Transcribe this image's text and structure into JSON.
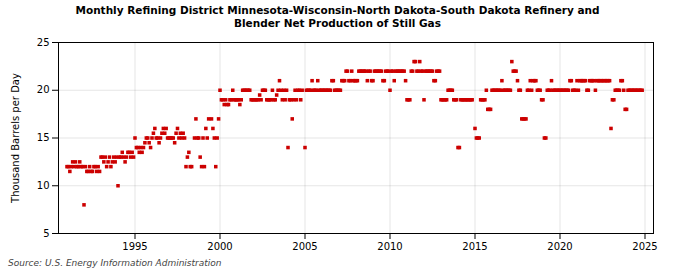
{
  "chart_data": {
    "type": "scatter",
    "title": "Monthly Refining District Minnesota-Wisconsin-North Dakota-South Dakota Refinery and\nBlender Net Production of Still Gas",
    "ylabel": "Thousand Barrels per Day",
    "annotations": [
      "Source: U.S. Energy Information Administration"
    ],
    "color": "#cc0000",
    "marker": "square",
    "grid": true,
    "xlim": [
      1990.5,
      2025.5
    ],
    "ylim": [
      5,
      25
    ],
    "xticks": [
      1995,
      2000,
      2005,
      2010,
      2015,
      2020,
      2025
    ],
    "yticks": [
      5,
      10,
      15,
      20,
      25
    ],
    "x": [
      1991.0,
      1991.083,
      1991.167,
      1991.25,
      1991.333,
      1991.417,
      1991.5,
      1991.583,
      1991.667,
      1991.75,
      1991.833,
      1991.917,
      1992.0,
      1992.083,
      1992.167,
      1992.25,
      1992.333,
      1992.417,
      1992.5,
      1992.583,
      1992.667,
      1992.75,
      1992.833,
      1992.917,
      1993.0,
      1993.083,
      1993.167,
      1993.25,
      1993.333,
      1993.417,
      1993.5,
      1993.583,
      1993.667,
      1993.75,
      1993.833,
      1993.917,
      1994.0,
      1994.083,
      1994.167,
      1994.25,
      1994.333,
      1994.417,
      1994.5,
      1994.583,
      1994.667,
      1994.75,
      1994.833,
      1994.917,
      1995.0,
      1995.083,
      1995.167,
      1995.25,
      1995.333,
      1995.417,
      1995.5,
      1995.583,
      1995.667,
      1995.75,
      1995.833,
      1995.917,
      1996.0,
      1996.083,
      1996.167,
      1996.25,
      1996.333,
      1996.417,
      1996.5,
      1996.583,
      1996.667,
      1996.75,
      1996.833,
      1996.917,
      1997.0,
      1997.083,
      1997.167,
      1997.25,
      1997.333,
      1997.417,
      1997.5,
      1997.583,
      1997.667,
      1997.75,
      1997.833,
      1997.917,
      1998.0,
      1998.083,
      1998.167,
      1998.25,
      1998.333,
      1998.5,
      1998.583,
      1998.667,
      1998.75,
      1998.833,
      1998.917,
      1999.0,
      1999.083,
      1999.167,
      1999.25,
      1999.333,
      1999.5,
      1999.583,
      1999.667,
      1999.75,
      1999.833,
      1999.917,
      2000.0,
      2000.083,
      2000.167,
      2000.25,
      2000.333,
      2000.417,
      2000.5,
      2000.583,
      2000.667,
      2000.75,
      2000.833,
      2000.917,
      2001.0,
      2001.083,
      2001.167,
      2001.25,
      2001.333,
      2001.417,
      2001.5,
      2001.583,
      2001.667,
      2001.75,
      2001.833,
      2001.917,
      2002.0,
      2002.083,
      2002.167,
      2002.25,
      2002.333,
      2002.417,
      2002.5,
      2002.583,
      2002.667,
      2002.75,
      2002.833,
      2002.917,
      2003.0,
      2003.083,
      2003.167,
      2003.25,
      2003.333,
      2003.417,
      2003.5,
      2003.583,
      2003.667,
      2003.75,
      2003.833,
      2003.917,
      2004.0,
      2004.083,
      2004.167,
      2004.25,
      2004.333,
      2004.417,
      2004.5,
      2004.583,
      2004.667,
      2004.75,
      2004.833,
      2005.0,
      2005.083,
      2005.167,
      2005.25,
      2005.333,
      2005.417,
      2005.5,
      2005.583,
      2005.667,
      2005.75,
      2005.833,
      2005.917,
      2006.0,
      2006.083,
      2006.167,
      2006.25,
      2006.333,
      2006.417,
      2006.5,
      2006.583,
      2006.667,
      2006.75,
      2006.833,
      2006.917,
      2007.0,
      2007.083,
      2007.167,
      2007.25,
      2007.333,
      2007.417,
      2007.5,
      2007.583,
      2007.667,
      2007.75,
      2007.833,
      2007.917,
      2008.0,
      2008.083,
      2008.167,
      2008.25,
      2008.333,
      2008.417,
      2008.5,
      2008.583,
      2008.667,
      2008.75,
      2008.833,
      2008.917,
      2009.0,
      2009.083,
      2009.167,
      2009.25,
      2009.333,
      2009.417,
      2009.5,
      2009.583,
      2009.667,
      2009.75,
      2009.833,
      2009.917,
      2010.0,
      2010.083,
      2010.167,
      2010.25,
      2010.333,
      2010.417,
      2010.5,
      2010.583,
      2010.667,
      2010.75,
      2010.833,
      2010.917,
      2011.0,
      2011.083,
      2011.167,
      2011.25,
      2011.333,
      2011.417,
      2011.5,
      2011.583,
      2011.667,
      2011.75,
      2011.833,
      2011.917,
      2012.0,
      2012.083,
      2012.167,
      2012.25,
      2012.333,
      2012.417,
      2012.5,
      2012.583,
      2012.667,
      2012.75,
      2012.833,
      2012.917,
      2013.0,
      2013.083,
      2013.167,
      2013.25,
      2013.333,
      2013.417,
      2013.5,
      2013.583,
      2013.667,
      2013.75,
      2013.833,
      2013.917,
      2014.0,
      2014.083,
      2014.167,
      2014.25,
      2014.333,
      2014.417,
      2014.5,
      2014.583,
      2014.667,
      2014.75,
      2014.833,
      2015.0,
      2015.083,
      2015.167,
      2015.25,
      2015.333,
      2015.417,
      2015.5,
      2015.583,
      2015.667,
      2015.75,
      2015.833,
      2015.917,
      2016.0,
      2016.083,
      2016.167,
      2016.25,
      2016.333,
      2016.417,
      2016.5,
      2016.583,
      2016.667,
      2016.75,
      2016.833,
      2016.917,
      2017.0,
      2017.083,
      2017.167,
      2017.25,
      2017.333,
      2017.417,
      2017.5,
      2017.583,
      2017.667,
      2017.75,
      2017.833,
      2017.917,
      2018.0,
      2018.083,
      2018.167,
      2018.25,
      2018.333,
      2018.417,
      2018.5,
      2018.583,
      2018.667,
      2018.75,
      2018.833,
      2018.917,
      2019.0,
      2019.083,
      2019.167,
      2019.25,
      2019.333,
      2019.417,
      2019.5,
      2019.583,
      2019.667,
      2019.75,
      2019.833,
      2019.917,
      2020.0,
      2020.083,
      2020.167,
      2020.25,
      2020.333,
      2020.417,
      2020.5,
      2020.583,
      2020.667,
      2020.75,
      2020.833,
      2020.917,
      2021.0,
      2021.083,
      2021.167,
      2021.25,
      2021.333,
      2021.417,
      2021.5,
      2021.583,
      2021.667,
      2021.75,
      2021.833,
      2021.917,
      2022.0,
      2022.083,
      2022.167,
      2022.25,
      2022.333,
      2022.417,
      2022.5,
      2022.583,
      2022.667,
      2022.75,
      2022.833,
      2022.917,
      2023.0,
      2023.083,
      2023.167,
      2023.25,
      2023.333,
      2023.417,
      2023.5,
      2023.583,
      2023.667,
      2023.75,
      2023.833,
      2023.917,
      2024.0,
      2024.083,
      2024.167,
      2024.25,
      2024.333,
      2024.417,
      2024.5,
      2024.583,
      2024.667,
      2024.75,
      2024.833
    ],
    "values": [
      12.0,
      12.0,
      11.5,
      12.0,
      12.5,
      12.0,
      12.5,
      12.0,
      12.0,
      12.5,
      12.0,
      12.0,
      8.0,
      12.0,
      11.5,
      11.5,
      12.0,
      11.5,
      11.5,
      12.0,
      12.0,
      11.5,
      12.0,
      11.5,
      13.0,
      13.0,
      12.5,
      13.0,
      12.0,
      12.5,
      13.0,
      12.0,
      12.5,
      13.0,
      12.5,
      13.0,
      10.0,
      13.0,
      13.0,
      13.5,
      13.0,
      12.5,
      13.0,
      13.5,
      13.5,
      13.0,
      13.5,
      13.0,
      15.0,
      14.0,
      14.0,
      13.5,
      14.0,
      13.5,
      14.0,
      14.5,
      15.0,
      15.0,
      14.5,
      14.0,
      15.0,
      15.5,
      16.0,
      15.0,
      15.0,
      14.5,
      15.0,
      15.5,
      16.0,
      15.5,
      16.0,
      15.0,
      15.0,
      15.0,
      15.0,
      15.0,
      14.5,
      15.5,
      16.0,
      15.0,
      15.5,
      15.0,
      15.5,
      15.0,
      12.0,
      13.0,
      13.5,
      12.0,
      12.0,
      15.0,
      17.0,
      15.0,
      15.0,
      13.0,
      12.0,
      15.0,
      12.0,
      16.0,
      15.0,
      17.0,
      17.0,
      16.0,
      15.0,
      12.0,
      15.0,
      17.0,
      20.0,
      19.0,
      19.0,
      18.5,
      19.0,
      18.5,
      18.5,
      19.0,
      19.0,
      20.0,
      19.0,
      19.0,
      19.0,
      19.0,
      18.5,
      19.0,
      20.0,
      20.0,
      20.0,
      20.0,
      20.0,
      20.0,
      19.0,
      19.0,
      19.0,
      19.0,
      19.0,
      19.0,
      19.5,
      19.0,
      20.0,
      20.0,
      20.0,
      19.0,
      19.0,
      19.0,
      19.0,
      20.0,
      19.0,
      19.0,
      19.5,
      20.0,
      21.0,
      20.0,
      19.0,
      20.0,
      19.0,
      20.0,
      14.0,
      19.0,
      19.0,
      17.0,
      19.0,
      20.0,
      19.0,
      20.0,
      20.0,
      19.0,
      20.0,
      14.0,
      20.0,
      20.0,
      20.0,
      20.0,
      21.0,
      20.0,
      20.0,
      20.0,
      21.0,
      20.0,
      20.0,
      20.0,
      20.0,
      20.0,
      20.0,
      20.0,
      20.0,
      20.0,
      21.0,
      21.0,
      20.0,
      20.0,
      20.0,
      20.0,
      20.0,
      21.0,
      21.0,
      21.0,
      22.0,
      22.0,
      21.0,
      21.0,
      22.0,
      21.0,
      21.0,
      21.0,
      21.0,
      22.0,
      22.0,
      22.0,
      22.0,
      22.0,
      22.0,
      21.0,
      22.0,
      22.0,
      21.0,
      21.0,
      22.0,
      22.0,
      22.0,
      22.0,
      22.0,
      22.0,
      21.0,
      21.0,
      22.0,
      22.0,
      22.0,
      20.0,
      22.0,
      22.0,
      21.0,
      22.0,
      22.0,
      22.0,
      22.0,
      22.0,
      22.0,
      22.0,
      21.0,
      19.0,
      19.0,
      19.0,
      22.0,
      22.0,
      23.0,
      23.0,
      22.0,
      22.0,
      23.0,
      22.0,
      22.0,
      19.0,
      22.0,
      22.0,
      22.0,
      22.0,
      22.0,
      22.0,
      21.0,
      21.0,
      22.0,
      22.0,
      22.0,
      19.0,
      19.0,
      19.0,
      19.0,
      19.0,
      20.0,
      20.0,
      20.0,
      20.0,
      19.0,
      19.0,
      19.0,
      14.0,
      14.0,
      19.0,
      19.0,
      19.0,
      19.0,
      19.0,
      19.0,
      19.0,
      19.0,
      19.0,
      16.0,
      15.0,
      15.0,
      15.0,
      19.0,
      19.0,
      19.0,
      19.0,
      20.0,
      18.0,
      18.0,
      18.0,
      20.0,
      20.0,
      20.0,
      20.0,
      20.0,
      20.0,
      20.0,
      21.0,
      20.0,
      20.0,
      20.0,
      20.0,
      20.0,
      20.0,
      23.0,
      22.0,
      22.0,
      22.0,
      21.0,
      20.0,
      20.0,
      17.0,
      17.0,
      17.0,
      17.0,
      20.0,
      20.0,
      21.0,
      20.0,
      21.0,
      21.0,
      21.0,
      20.0,
      20.0,
      20.0,
      19.0,
      19.0,
      15.0,
      15.0,
      20.0,
      20.0,
      20.0,
      21.0,
      20.0,
      20.0,
      20.0,
      20.0,
      20.0,
      20.0,
      20.0,
      20.0,
      20.0,
      20.0,
      20.0,
      20.0,
      21.0,
      21.0,
      20.0,
      20.0,
      20.0,
      21.0,
      20.0,
      21.0,
      21.0,
      21.0,
      21.0,
      21.0,
      20.0,
      20.0,
      21.0,
      21.0,
      21.0,
      21.0,
      20.0,
      21.0,
      21.0,
      21.0,
      21.0,
      21.0,
      21.0,
      21.0,
      21.0,
      21.0,
      21.0,
      16.0,
      19.0,
      19.0,
      20.0,
      20.0,
      20.0,
      20.0,
      21.0,
      21.0,
      20.0,
      18.0,
      18.0,
      20.0,
      20.0,
      20.0,
      20.0,
      20.0,
      20.0,
      20.0,
      20.0,
      20.0,
      20.0,
      20.0
    ]
  }
}
